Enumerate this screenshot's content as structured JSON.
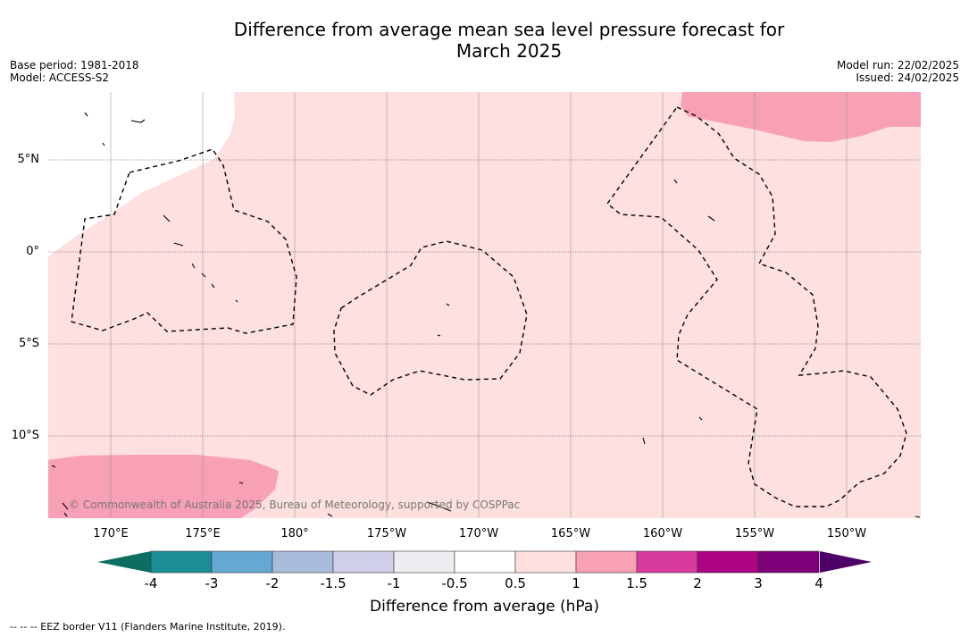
{
  "title_line1": "Difference from average mean sea level pressure forecast for",
  "title_line2": "March 2025",
  "meta_left": {
    "base_period": "Base period: 1981-2018",
    "model": "Model: ACCESS-S2"
  },
  "meta_right": {
    "model_run": "Model run: 22/02/2025",
    "issued": "Issued: 24/02/2025"
  },
  "lat_labels": [
    "5°N",
    "0°",
    "5°S",
    "10°S"
  ],
  "lon_labels": [
    "170°E",
    "175°E",
    "180°",
    "175°W",
    "170°W",
    "165°W",
    "160°W",
    "155°W",
    "150°W"
  ],
  "copyright": "© Commonwealth of Australia 2025, Bureau of Meteorology, supported by COSPPac",
  "colorbar": {
    "ticks": [
      "-4",
      "-3",
      "-2",
      "-1.5",
      "-1",
      "-0.5",
      "0.5",
      "1",
      "1.5",
      "2",
      "3",
      "4"
    ],
    "colors": [
      "#1b8e95",
      "#63a9d2",
      "#a8bbdb",
      "#cfd0e8",
      "#efecf1",
      "#ffffff",
      "#fde0df",
      "#f8a0b5",
      "#d83a9e",
      "#ac0483",
      "#7d0078"
    ],
    "under_color": "#0c6e62",
    "over_color": "#4f0068",
    "label": "Difference from average (hPa)"
  },
  "footer": "--  --  -- EEZ border V11 (Flanders Marine Institute, 2019)."
}
